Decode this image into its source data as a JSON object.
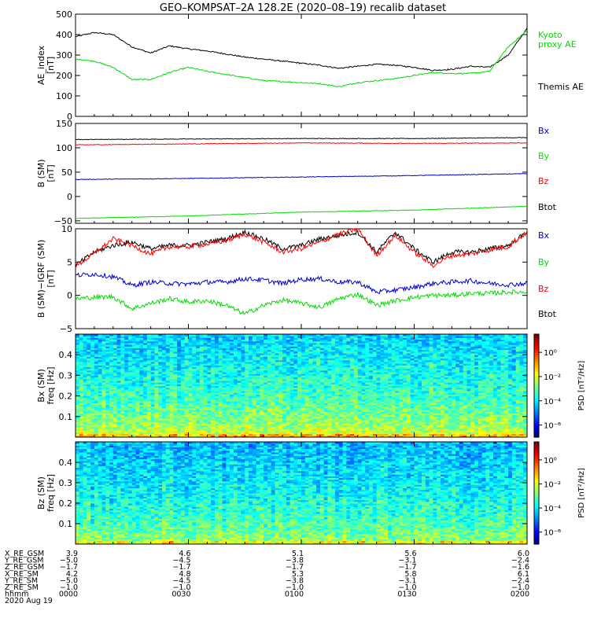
{
  "title": "GEO–KOMPSAT–2A 128.2E (2020–08–19) recalib dataset",
  "colors": {
    "black": "#000000",
    "red": "#ff0000",
    "green": "#00dd00",
    "blue": "#0000cc"
  },
  "chart_data": [
    {
      "type": "line",
      "panel": "ae",
      "ylabel_lines": [
        "AE_index",
        "[nT]"
      ],
      "ylim": [
        0,
        500
      ],
      "yticks": [
        "0",
        "100",
        "200",
        "300",
        "400",
        "500"
      ],
      "xlim": [
        0,
        120
      ],
      "legend": [
        {
          "text": "Kyoto\nproxy AE",
          "color": "#00dd00"
        },
        {
          "text": "Themis AE",
          "color": "#000000"
        }
      ],
      "series": [
        {
          "name": "Themis AE",
          "color": "#000000",
          "x": [
            0,
            5,
            10,
            15,
            20,
            25,
            30,
            35,
            40,
            45,
            50,
            55,
            60,
            65,
            70,
            75,
            80,
            85,
            90,
            95,
            100,
            105,
            110,
            115,
            120
          ],
          "values": [
            390,
            410,
            400,
            340,
            310,
            345,
            330,
            320,
            305,
            290,
            280,
            270,
            260,
            250,
            235,
            245,
            255,
            250,
            240,
            225,
            230,
            245,
            240,
            300,
            430
          ]
        },
        {
          "name": "Kyoto proxy AE",
          "color": "#00dd00",
          "x": [
            0,
            5,
            10,
            15,
            20,
            25,
            30,
            35,
            40,
            45,
            50,
            55,
            60,
            65,
            70,
            75,
            80,
            85,
            90,
            95,
            100,
            105,
            110,
            115,
            120
          ],
          "values": [
            280,
            270,
            240,
            180,
            180,
            215,
            240,
            220,
            205,
            190,
            175,
            170,
            165,
            160,
            145,
            165,
            175,
            185,
            200,
            215,
            210,
            210,
            220,
            340,
            420
          ]
        }
      ]
    },
    {
      "type": "line",
      "panel": "b_sm",
      "ylabel_lines": [
        "B (SM)",
        "[nT]"
      ],
      "ylim": [
        -55,
        150
      ],
      "yticks": [
        "−50",
        "0",
        "50",
        "100",
        "150"
      ],
      "ytick_values": [
        -50,
        0,
        50,
        100,
        150
      ],
      "xlim": [
        0,
        120
      ],
      "legend": [
        {
          "text": "Bx",
          "color": "#0000cc"
        },
        {
          "text": "By",
          "color": "#00dd00"
        },
        {
          "text": "Bz",
          "color": "#ff0000"
        },
        {
          "text": "Btot",
          "color": "#000000"
        }
      ],
      "series": [
        {
          "name": "Btot",
          "color": "#000000",
          "x": [
            0,
            30,
            60,
            90,
            120
          ],
          "values": [
            117,
            118,
            119,
            119,
            121
          ]
        },
        {
          "name": "Bz",
          "color": "#ff0000",
          "x": [
            0,
            30,
            60,
            90,
            120
          ],
          "values": [
            106,
            108,
            110,
            109,
            110
          ]
        },
        {
          "name": "Bx",
          "color": "#0000cc",
          "x": [
            0,
            30,
            60,
            90,
            120
          ],
          "values": [
            35,
            37,
            40,
            43,
            47
          ]
        },
        {
          "name": "By",
          "color": "#00dd00",
          "x": [
            0,
            30,
            60,
            90,
            120
          ],
          "values": [
            -45,
            -40,
            -32,
            -28,
            -20
          ]
        }
      ]
    },
    {
      "type": "line",
      "panel": "b_diff",
      "ylabel_lines": [
        "B (SM)−IGRF (SM)",
        "[nT]"
      ],
      "ylim": [
        -5,
        10
      ],
      "yticks": [
        "−5",
        "0",
        "5",
        "10"
      ],
      "ytick_values": [
        -5,
        0,
        5,
        10
      ],
      "xlim": [
        0,
        120
      ],
      "legend": [
        {
          "text": "Bx",
          "color": "#0000cc"
        },
        {
          "text": "By",
          "color": "#00dd00"
        },
        {
          "text": "Bz",
          "color": "#ff0000"
        },
        {
          "text": "Btot",
          "color": "#000000"
        }
      ],
      "series": [
        {
          "name": "Btot",
          "color": "#000000",
          "x": [
            0,
            5,
            10,
            15,
            20,
            25,
            30,
            35,
            40,
            45,
            50,
            55,
            60,
            65,
            70,
            75,
            80,
            85,
            90,
            95,
            100,
            105,
            110,
            115,
            120
          ],
          "values": [
            4.5,
            6.5,
            7.5,
            8.0,
            7.0,
            7.5,
            7.5,
            8.0,
            8.5,
            9.5,
            8.5,
            7.0,
            7.5,
            8.5,
            9.0,
            9.5,
            6.5,
            9.5,
            7.0,
            5.0,
            6.5,
            6.5,
            7.0,
            7.5,
            9.5
          ]
        },
        {
          "name": "Bz",
          "color": "#ff0000",
          "x": [
            0,
            5,
            10,
            15,
            20,
            25,
            30,
            35,
            40,
            45,
            50,
            55,
            60,
            65,
            70,
            75,
            80,
            85,
            90,
            95,
            100,
            105,
            110,
            115,
            120
          ],
          "values": [
            4.3,
            6.3,
            8.5,
            7.5,
            6.2,
            7.3,
            7.3,
            7.7,
            8.2,
            9.2,
            8.0,
            6.5,
            7.0,
            8.0,
            9.2,
            10.0,
            6.0,
            9.0,
            6.5,
            4.5,
            6.0,
            6.2,
            6.8,
            7.3,
            9.5
          ]
        },
        {
          "name": "Bx",
          "color": "#0000cc",
          "x": [
            0,
            5,
            10,
            15,
            20,
            25,
            30,
            35,
            40,
            45,
            50,
            55,
            60,
            65,
            70,
            75,
            80,
            85,
            90,
            95,
            100,
            105,
            110,
            115,
            120
          ],
          "values": [
            3.0,
            3.2,
            2.8,
            1.5,
            2.0,
            1.8,
            1.7,
            2.0,
            2.0,
            2.5,
            2.3,
            1.8,
            2.4,
            2.5,
            2.0,
            2.0,
            0.5,
            0.8,
            1.2,
            1.8,
            2.0,
            2.2,
            1.8,
            1.6,
            1.8
          ]
        },
        {
          "name": "By",
          "color": "#00dd00",
          "x": [
            0,
            5,
            10,
            15,
            20,
            25,
            30,
            35,
            40,
            45,
            50,
            55,
            60,
            65,
            70,
            75,
            80,
            85,
            90,
            95,
            100,
            105,
            110,
            115,
            120
          ],
          "values": [
            -0.5,
            -0.3,
            -0.2,
            -2.0,
            -1.2,
            -0.5,
            -1.0,
            -0.8,
            -1.5,
            -2.8,
            -1.5,
            -0.7,
            -1.2,
            -1.8,
            -0.5,
            0.2,
            -1.5,
            -0.8,
            -0.3,
            0.0,
            0.0,
            0.3,
            0.3,
            0.5,
            0.5
          ]
        }
      ]
    },
    {
      "type": "heatmap",
      "panel": "bx_spec",
      "ylabel_lines": [
        "Bx (SM)",
        "freq [Hz]"
      ],
      "ylim": [
        0.0,
        0.5
      ],
      "yticks": [
        "0.1",
        "0.2",
        "0.3",
        "0.4"
      ],
      "ytick_values": [
        0.1,
        0.2,
        0.3,
        0.4
      ],
      "colorbar_label": "PSD [nT²/Hz]",
      "colorbar_ticks": [
        "10⁰",
        "10⁻²",
        "10⁻⁴",
        "10⁻⁶"
      ],
      "colorbar_tick_values": [
        0,
        -2,
        -4,
        -6
      ],
      "log_psd_range": [
        -7,
        1.5
      ],
      "low_freq_log_psd": -1.5,
      "high_freq_log_psd": -4.2
    },
    {
      "type": "heatmap",
      "panel": "bz_spec",
      "ylabel_lines": [
        "Bz (SM)",
        "freq [Hz]"
      ],
      "ylim": [
        0.0,
        0.5
      ],
      "yticks": [
        "0.1",
        "0.2",
        "0.3",
        "0.4"
      ],
      "ytick_values": [
        0.1,
        0.2,
        0.3,
        0.4
      ],
      "colorbar_label": "PSD [nT²/Hz]",
      "colorbar_ticks": [
        "10⁰",
        "10⁻²",
        "10⁻⁴",
        "10⁻⁶"
      ],
      "colorbar_tick_values": [
        0,
        -2,
        -4,
        -6
      ],
      "log_psd_range": [
        -7,
        1.5
      ],
      "low_freq_log_psd": -2.0,
      "high_freq_log_psd": -4.4
    }
  ],
  "x_axis": {
    "row_labels": [
      "X_RE_GSM",
      "Y_RE_GSM",
      "Z_RE_GSM",
      "X_RE_SM",
      "Y_RE_SM",
      "Z_RE_SM",
      "hhmm"
    ],
    "date": "2020 Aug 19",
    "tick_values": [
      0,
      30,
      60,
      90,
      120
    ],
    "columns": [
      [
        "3.9",
        "−5.0",
        "−1.7",
        "4.2",
        "−5.0",
        "−1.0",
        "0000"
      ],
      [
        "4.6",
        "−4.5",
        "−1.7",
        "4.8",
        "−4.5",
        "−1.0",
        "0030"
      ],
      [
        "5.1",
        "−3.8",
        "−1.7",
        "5.3",
        "−3.8",
        "−1.0",
        "0100"
      ],
      [
        "5.6",
        "−3.1",
        "−1.7",
        "5.8",
        "−3.1",
        "−1.0",
        "0130"
      ],
      [
        "6.0",
        "−2.4",
        "−1.6",
        "6.1",
        "−2.4",
        "−1.0",
        "0200"
      ]
    ]
  }
}
